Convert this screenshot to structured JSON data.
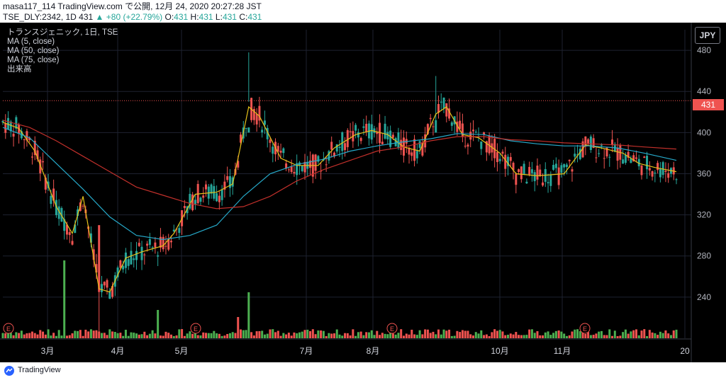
{
  "header": {
    "line1": "masa117_114 TradingView.com で公開, 12月 24, 2020 20:27:28 JST",
    "symbol": "TSE_DLY:2342, 1D 431",
    "change": "▲ +80 (+22.79%)",
    "o_label": "O:",
    "o_value": "431",
    "h_label": "H:",
    "h_value": "431",
    "l_label": "L:",
    "l_value": "431",
    "c_label": "C:",
    "c_value": "431"
  },
  "legend": {
    "title": "トランスジェニック, 1日, TSE",
    "ma5": "MA (5, close)",
    "ma50": "MA (50, close)",
    "ma75": "MA (75, close)",
    "volume": "出来高"
  },
  "currency": "JPY",
  "last_price_label": "431",
  "earnings_marker": "E",
  "footer_brand": "TradingView",
  "colors": {
    "up": "#26a69a",
    "down": "#ef5350",
    "ma5": "#e5c21a",
    "ma50": "#26a9c9",
    "ma75": "#c2302b",
    "vol_up": "#4caf50",
    "vol_down": "#ef5350"
  },
  "chart_data": {
    "type": "line",
    "title": "トランスジェニック, 1日, TSE",
    "y_axis": {
      "ylim": [
        200,
        500
      ],
      "ticks": [
        240,
        280,
        320,
        360,
        400,
        440,
        480
      ]
    },
    "x_axis": {
      "tick_labels": [
        "3月",
        "4月",
        "5月",
        "7月",
        "8月",
        "10月",
        "11月",
        "20"
      ]
    },
    "last_price": 431,
    "earnings_months": [
      "2月",
      "5月",
      "8月",
      "11月"
    ],
    "series": [
      {
        "name": "MA (5, close)",
        "points": [
          [
            0,
            410
          ],
          [
            6,
            404
          ],
          [
            12,
            382
          ],
          [
            20,
            328
          ],
          [
            26,
            302
          ],
          [
            30,
            338
          ],
          [
            36,
            248
          ],
          [
            40,
            245
          ],
          [
            46,
            278
          ],
          [
            52,
            284
          ],
          [
            60,
            290
          ],
          [
            64,
            302
          ],
          [
            72,
            340
          ],
          [
            80,
            342
          ],
          [
            86,
            350
          ],
          [
            92,
            425
          ],
          [
            96,
            416
          ],
          [
            104,
            375
          ],
          [
            110,
            368
          ],
          [
            118,
            368
          ],
          [
            124,
            385
          ],
          [
            132,
            398
          ],
          [
            138,
            402
          ],
          [
            144,
            398
          ],
          [
            150,
            386
          ],
          [
            156,
            382
          ],
          [
            162,
            418
          ],
          [
            166,
            425
          ],
          [
            172,
            398
          ],
          [
            178,
            395
          ],
          [
            186,
            380
          ],
          [
            192,
            360
          ],
          [
            200,
            358
          ],
          [
            210,
            360
          ],
          [
            218,
            388
          ],
          [
            224,
            385
          ],
          [
            232,
            380
          ],
          [
            238,
            370
          ],
          [
            244,
            366
          ],
          [
            252,
            362
          ]
        ]
      },
      {
        "name": "MA (50, close)",
        "points": [
          [
            0,
            405
          ],
          [
            10,
            395
          ],
          [
            20,
            370
          ],
          [
            30,
            345
          ],
          [
            40,
            318
          ],
          [
            50,
            300
          ],
          [
            60,
            296
          ],
          [
            70,
            300
          ],
          [
            80,
            310
          ],
          [
            90,
            338
          ],
          [
            100,
            360
          ],
          [
            110,
            369
          ],
          [
            120,
            374
          ],
          [
            130,
            382
          ],
          [
            140,
            387
          ],
          [
            150,
            391
          ],
          [
            160,
            394
          ],
          [
            170,
            399
          ],
          [
            180,
            398
          ],
          [
            190,
            392
          ],
          [
            200,
            389
          ],
          [
            210,
            387
          ],
          [
            220,
            387
          ],
          [
            230,
            385
          ],
          [
            240,
            380
          ],
          [
            252,
            373
          ]
        ]
      },
      {
        "name": "MA (75, close)",
        "points": [
          [
            0,
            412
          ],
          [
            10,
            405
          ],
          [
            20,
            392
          ],
          [
            30,
            377
          ],
          [
            40,
            362
          ],
          [
            50,
            347
          ],
          [
            60,
            339
          ],
          [
            70,
            331
          ],
          [
            80,
            326
          ],
          [
            90,
            328
          ],
          [
            100,
            338
          ],
          [
            110,
            353
          ],
          [
            120,
            364
          ],
          [
            130,
            373
          ],
          [
            140,
            382
          ],
          [
            150,
            386
          ],
          [
            160,
            392
          ],
          [
            170,
            396
          ],
          [
            180,
            396
          ],
          [
            190,
            393
          ],
          [
            200,
            392
          ],
          [
            210,
            390
          ],
          [
            220,
            389
          ],
          [
            230,
            388
          ],
          [
            240,
            386
          ],
          [
            252,
            384
          ]
        ]
      }
    ],
    "volume_bars_note": "volume histogram shown at bottom, colored by candle direction"
  }
}
